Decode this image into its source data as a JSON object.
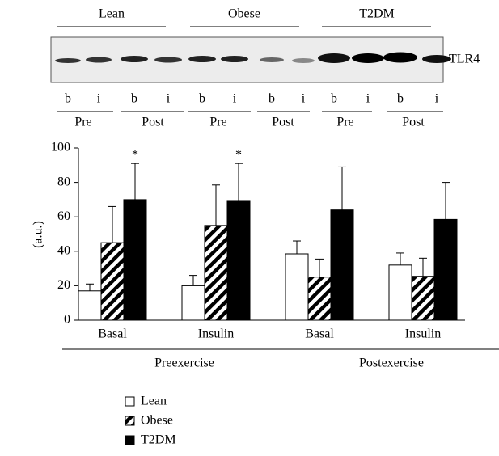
{
  "blot": {
    "groups": [
      "Lean",
      "Obese",
      "T2DM"
    ],
    "lanes": [
      "b",
      "i",
      "b",
      "i",
      "b",
      "i",
      "b",
      "i",
      "b",
      "i",
      "b",
      "i"
    ],
    "timepoints": [
      "Pre",
      "Post",
      "Pre",
      "Post",
      "Pre",
      "Post"
    ],
    "protein": "TLR4"
  },
  "chart_data": {
    "type": "bar",
    "y_label": "(a.u.)",
    "categories": [
      "Basal",
      "Insulin",
      "Basal",
      "Insulin"
    ],
    "group_labels": [
      "Preexercise",
      "Postexercise"
    ],
    "ylim": [
      0,
      100
    ],
    "yticks": [
      0,
      20,
      40,
      60,
      80,
      100
    ],
    "series": [
      {
        "name": "Lean",
        "color": "#ffffff",
        "values": [
          17,
          20,
          38.5,
          32
        ],
        "errors": [
          4,
          6,
          7.5,
          7
        ]
      },
      {
        "name": "Obese",
        "color": "#000000",
        "hatch": true,
        "values": [
          45,
          55,
          25,
          25.5
        ],
        "errors": [
          21,
          23.5,
          10.5,
          10.5
        ]
      },
      {
        "name": "T2DM",
        "color": "#000000",
        "values": [
          70,
          69.5,
          64,
          58.5
        ],
        "errors": [
          21,
          21.5,
          25,
          21.5
        ],
        "annotations": [
          "*",
          "*",
          null,
          null
        ]
      }
    ]
  }
}
